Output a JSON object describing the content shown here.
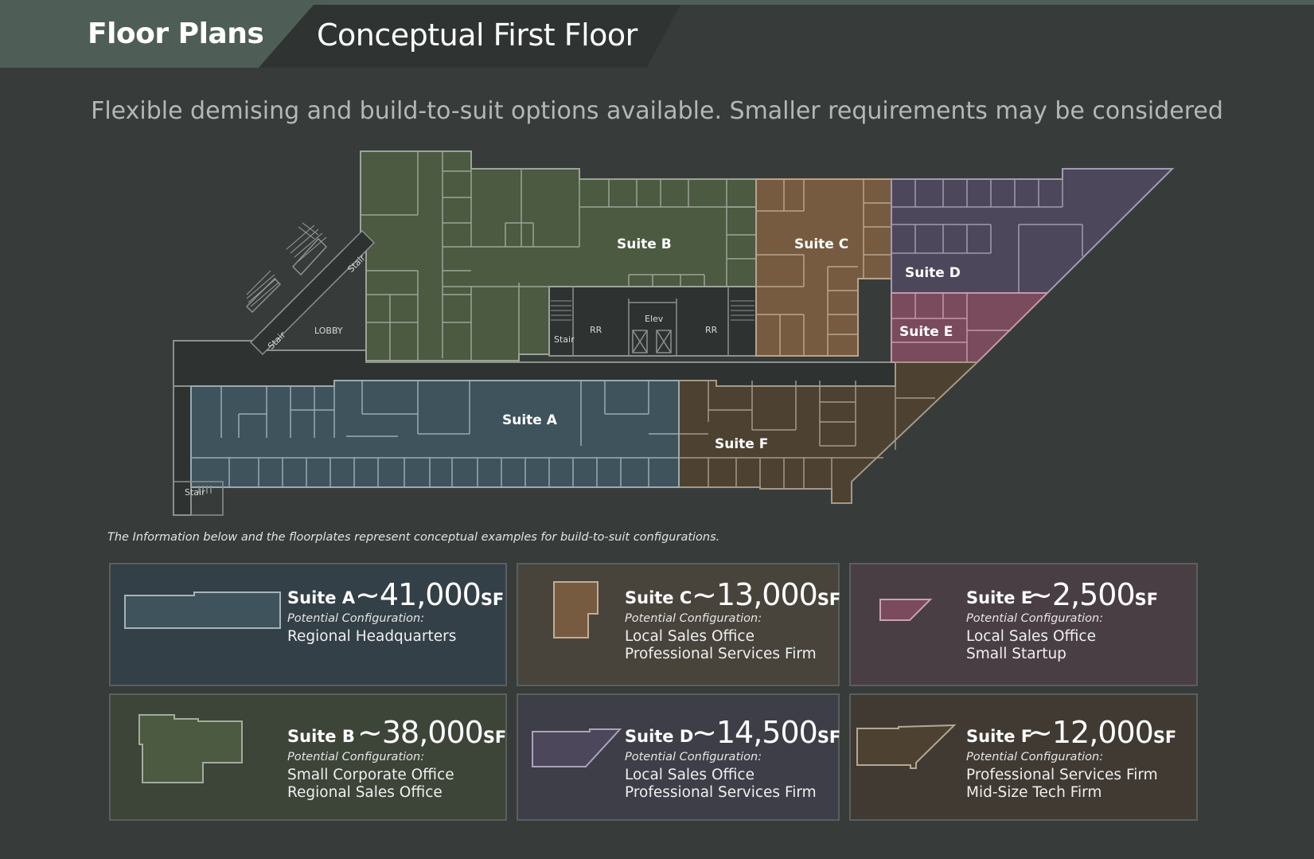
{
  "header": {
    "title": "Floor Plans",
    "subtitle": "Conceptual First Floor"
  },
  "tagline": "Flexible demising and build-to-suit options available. Smaller requirements may be considered",
  "plan": {
    "labels": {
      "suite_a": "Suite A",
      "suite_b": "Suite B",
      "suite_c": "Suite C",
      "suite_d": "Suite D",
      "suite_e": "Suite E",
      "suite_f": "Suite F",
      "lobby": "LOBBY",
      "rr1": "RR",
      "rr2": "RR",
      "elev": "Elev",
      "stair_core": "Stair",
      "stair_lobby_top": "Stair",
      "stair_lobby_bottom": "Stair",
      "stair_west": "Stair"
    }
  },
  "note": "The Information below and the floorplates represent conceptual examples for build-to-suit configurations.",
  "suites": [
    {
      "name": "Suite A",
      "approx": "~",
      "size": "41,000",
      "unit": "SF",
      "config_label": "Potential Configuration:",
      "configs": [
        "Regional Headquarters"
      ],
      "color": "#3f535c"
    },
    {
      "name": "Suite C",
      "approx": "~",
      "size": "13,000",
      "unit": "SF",
      "config_label": "Potential Configuration:",
      "configs": [
        "Local Sales Office",
        "Professional Services Firm"
      ],
      "color": "#765b40"
    },
    {
      "name": "Suite E",
      "approx": "~",
      "size": "2,500",
      "unit": "SF",
      "config_label": "Potential Configuration:",
      "configs": [
        "Local Sales Office",
        "Small Startup"
      ],
      "color": "#7a4a5d"
    },
    {
      "name": "Suite B",
      "approx": "~",
      "size": "38,000",
      "unit": "SF",
      "config_label": "Potential Configuration:",
      "configs": [
        "Small Corporate Office",
        "Regional Sales Office"
      ],
      "color": "#4b5a40"
    },
    {
      "name": "Suite D",
      "approx": "~",
      "size": "14,500",
      "unit": "SF",
      "config_label": "Potential Configuration:",
      "configs": [
        "Local Sales Office",
        "Professional Services Firm"
      ],
      "color": "#4c475a"
    },
    {
      "name": "Suite F",
      "approx": "~",
      "size": "12,000",
      "unit": "SF",
      "config_label": "Potential Configuration:",
      "configs": [
        "Professional Services Firm",
        "Mid-Size Tech Firm"
      ],
      "color": "#4d4232"
    }
  ],
  "colors": {
    "background": "#373c3a",
    "header_green": "#4e5e57",
    "suite_a": "#3f535c",
    "suite_b": "#4b5a40",
    "suite_c": "#765b40",
    "suite_d": "#4c475a",
    "suite_e": "#7a4a5d",
    "suite_f": "#4d4232",
    "card_a": "#344048",
    "card_b": "#3d4438",
    "card_c": "#48443c",
    "card_d": "#3e3e48",
    "card_e": "#4a3e45",
    "card_f": "#403a32"
  }
}
